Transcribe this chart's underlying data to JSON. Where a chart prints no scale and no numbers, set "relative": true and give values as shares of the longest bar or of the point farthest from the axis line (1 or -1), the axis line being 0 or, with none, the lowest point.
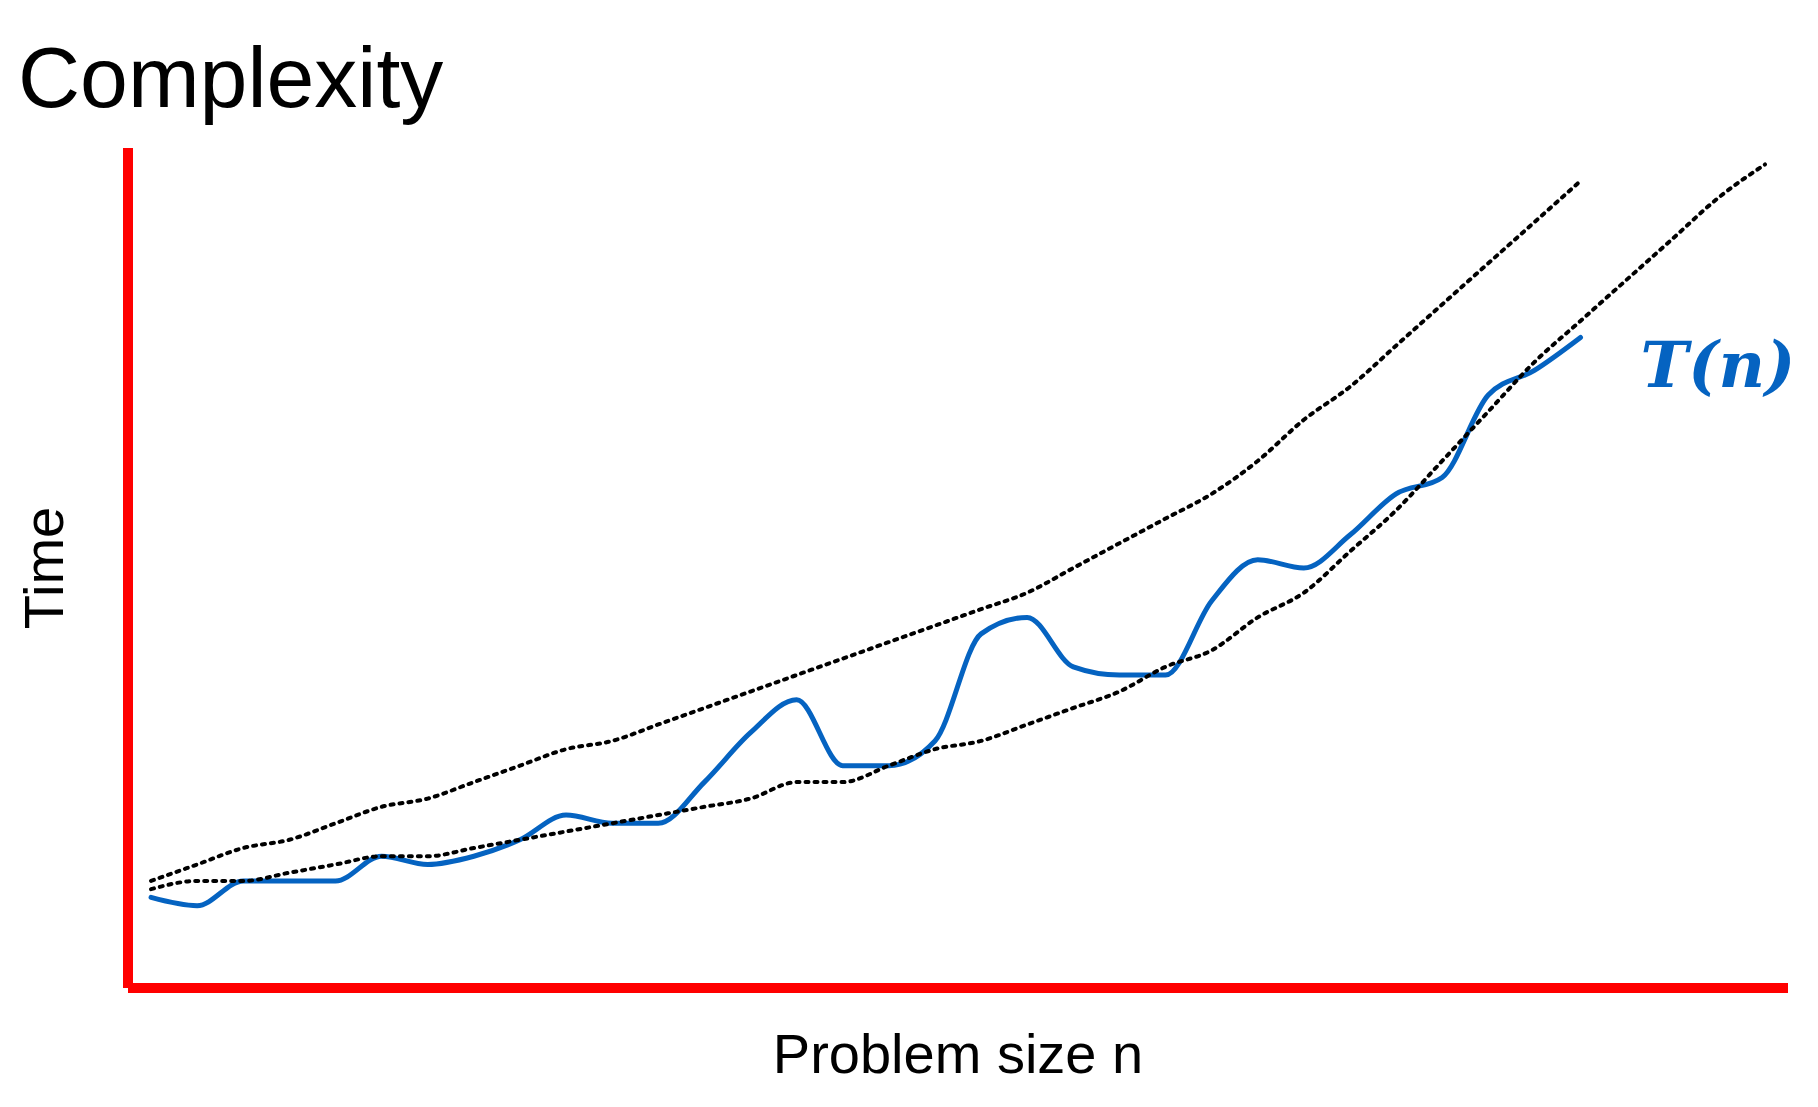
{
  "chart_data": {
    "type": "line",
    "title": "Complexity",
    "xlabel": "Problem size n",
    "ylabel": "Time",
    "relative": true,
    "marker": "none",
    "categories": [
      null,
      null,
      null,
      null,
      null,
      null,
      null,
      null,
      null,
      null,
      null,
      null,
      null,
      null,
      null,
      null,
      null,
      null,
      null,
      null,
      null,
      null,
      null,
      null,
      null,
      null,
      null,
      null,
      null,
      null,
      null,
      null,
      null,
      null,
      null,
      null
    ],
    "series": [
      {
        "name": "T(n)",
        "color": "#0563c1",
        "line_style": "solid",
        "values": [
          0.11,
          0.1,
          0.13,
          0.13,
          0.13,
          0.16,
          0.15,
          0.16,
          0.18,
          0.21,
          0.2,
          0.2,
          0.25,
          0.31,
          0.35,
          0.27,
          0.27,
          0.3,
          0.43,
          0.45,
          0.39,
          0.38,
          0.38,
          0.47,
          0.52,
          0.51,
          0.55,
          0.6,
          0.62,
          0.72,
          0.75,
          0.79,
          null,
          null,
          null,
          null
        ]
      },
      {
        "color": "#000000",
        "line_style": "dotted",
        "values": [
          0.13,
          0.15,
          0.17,
          0.18,
          0.2,
          0.22,
          0.23,
          0.25,
          0.27,
          0.29,
          0.3,
          0.32,
          0.34,
          0.36,
          0.38,
          0.4,
          0.42,
          0.44,
          0.46,
          0.48,
          0.51,
          0.54,
          0.57,
          0.6,
          0.64,
          0.69,
          0.73,
          0.78,
          0.83,
          0.88,
          0.93,
          0.98,
          null,
          null,
          null,
          null
        ]
      },
      {
        "color": "#000000",
        "line_style": "dotted",
        "values": [
          0.12,
          0.13,
          0.13,
          0.14,
          0.15,
          0.16,
          0.16,
          0.17,
          0.18,
          0.19,
          0.2,
          0.21,
          0.22,
          0.23,
          0.25,
          0.25,
          0.27,
          0.29,
          0.3,
          0.32,
          0.34,
          0.36,
          0.39,
          0.41,
          0.45,
          0.48,
          0.53,
          0.58,
          0.64,
          0.7,
          0.76,
          0.81,
          0.86,
          0.91,
          0.96,
          1
        ]
      }
    ]
  }
}
